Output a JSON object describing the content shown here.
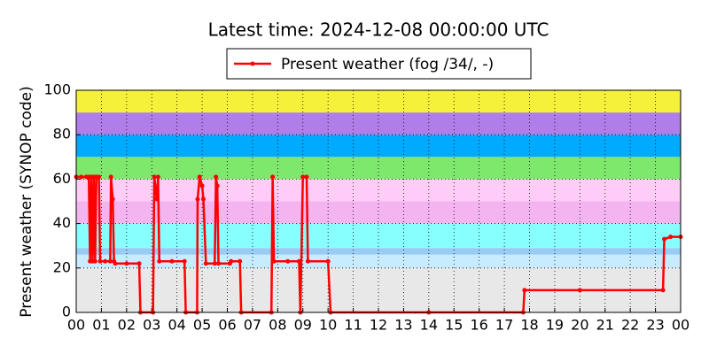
{
  "chart_data": {
    "type": "line",
    "title": "Latest time: 2024-12-08 00:00:00 UTC",
    "y_label": "Present weather (SYNOP code)",
    "series": [
      {
        "name": "Present weather (fog /34/, -)",
        "color": "#ff0000",
        "x": [
          0,
          0.2,
          0.4,
          0.5,
          0.55,
          0.6,
          0.65,
          0.7,
          0.75,
          0.8,
          0.9,
          0.95,
          1.15,
          1.35,
          1.38,
          1.45,
          1.5,
          1.55,
          2.0,
          2.5,
          2.55,
          3.05,
          3.1,
          3.2,
          3.25,
          3.3,
          3.8,
          4.3,
          4.35,
          4.8,
          4.82,
          4.9,
          5.0,
          5.05,
          5.15,
          5.5,
          5.55,
          5.6,
          5.65,
          6.1,
          6.15,
          6.5,
          6.55,
          7.75,
          7.8,
          7.85,
          8.4,
          8.85,
          8.9,
          9.0,
          9.15,
          9.2,
          10.0,
          10.1,
          14,
          17.75,
          17.8,
          20,
          23.3,
          23.35,
          23.6,
          24
        ],
        "values": [
          61,
          61,
          61,
          61,
          23,
          61,
          23,
          61,
          23,
          61,
          61,
          23,
          23,
          23,
          61,
          51,
          23,
          22,
          22,
          22,
          0,
          0,
          61,
          51,
          61,
          23,
          23,
          23,
          0,
          0,
          51,
          61,
          57,
          51,
          22,
          22,
          61,
          57,
          22,
          22,
          23,
          23,
          0,
          0,
          61,
          23,
          23,
          23,
          0,
          61,
          61,
          23,
          23,
          0,
          0,
          0,
          10,
          10,
          10,
          33,
          34,
          34
        ]
      }
    ],
    "bands": [
      {
        "from": 0,
        "to": 20,
        "color": "#e8e8e8"
      },
      {
        "from": 20,
        "to": 26,
        "color": "#c8ecff"
      },
      {
        "from": 26,
        "to": 29,
        "color": "#99ccf5"
      },
      {
        "from": 29,
        "to": 40,
        "color": "#88ffff"
      },
      {
        "from": 40,
        "to": 50,
        "color": "#f4b4f0"
      },
      {
        "from": 50,
        "to": 60,
        "color": "#ffccf8"
      },
      {
        "from": 60,
        "to": 70,
        "color": "#7ee86c"
      },
      {
        "from": 70,
        "to": 80,
        "color": "#00aaff"
      },
      {
        "from": 80,
        "to": 90,
        "color": "#b07ee8"
      },
      {
        "from": 90,
        "to": 100,
        "color": "#f5f03a"
      }
    ],
    "xlim": [
      0,
      24
    ],
    "xticks": [
      {
        "value": 0,
        "label": "00"
      },
      {
        "value": 1,
        "label": "01"
      },
      {
        "value": 2,
        "label": "02"
      },
      {
        "value": 3,
        "label": "03"
      },
      {
        "value": 4,
        "label": "04"
      },
      {
        "value": 5,
        "label": "05"
      },
      {
        "value": 6,
        "label": "06"
      },
      {
        "value": 7,
        "label": "07"
      },
      {
        "value": 8,
        "label": "08"
      },
      {
        "value": 9,
        "label": "09"
      },
      {
        "value": 10,
        "label": "10"
      },
      {
        "value": 11,
        "label": "11"
      },
      {
        "value": 12,
        "label": "12"
      },
      {
        "value": 13,
        "label": "13"
      },
      {
        "value": 14,
        "label": "14"
      },
      {
        "value": 15,
        "label": "15"
      },
      {
        "value": 16,
        "label": "16"
      },
      {
        "value": 17,
        "label": "17"
      },
      {
        "value": 18,
        "label": "18"
      },
      {
        "value": 19,
        "label": "19"
      },
      {
        "value": 20,
        "label": "20"
      },
      {
        "value": 21,
        "label": "21"
      },
      {
        "value": 22,
        "label": "22"
      },
      {
        "value": 23,
        "label": "23"
      },
      {
        "value": 24,
        "label": "00"
      }
    ],
    "ylim": [
      0,
      100
    ],
    "yticks": [
      0,
      20,
      40,
      60,
      80,
      100
    ],
    "grid": true,
    "legend": "top"
  }
}
